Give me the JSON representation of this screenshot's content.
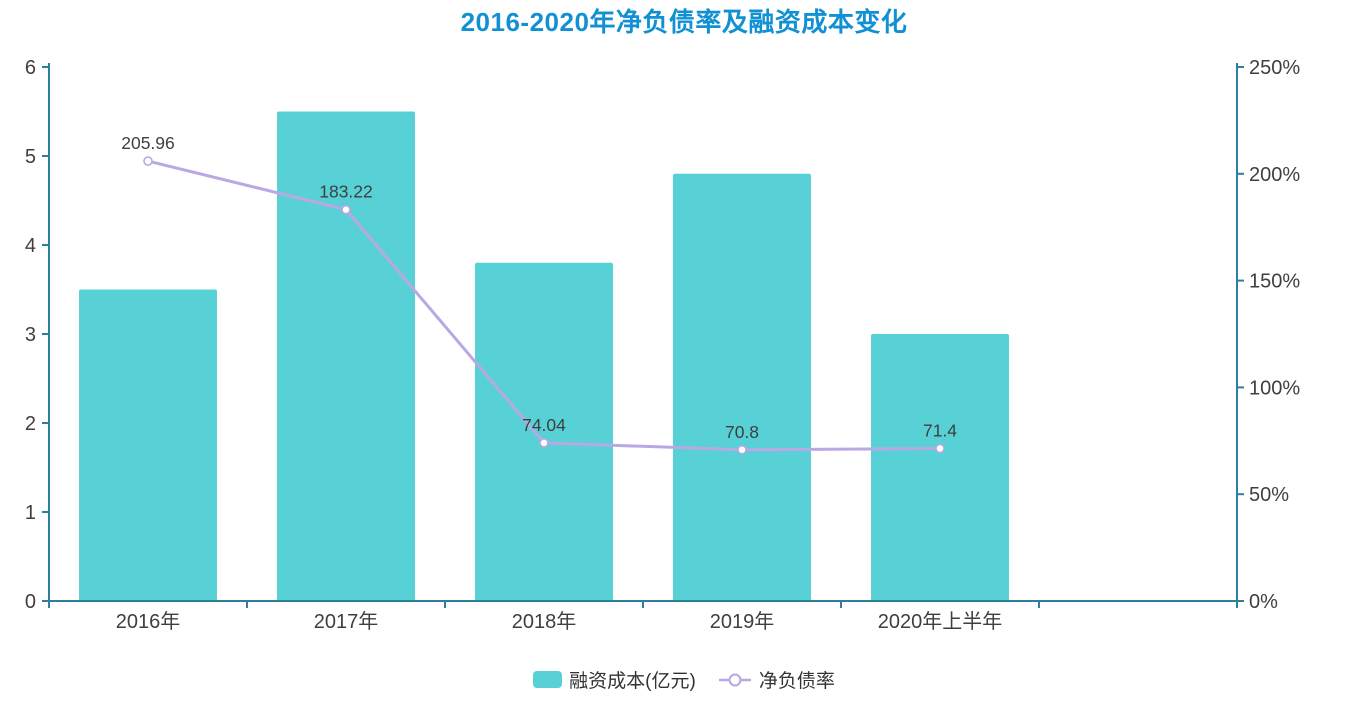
{
  "title": "2016-2020年净负债率及融资成本变化",
  "legend": {
    "bar_label": "融资成本(亿元)",
    "line_label": "净负债率"
  },
  "chart_data": {
    "type": "bar",
    "subtype": "bar+line combo, dual y-axis",
    "categories": [
      "2016年",
      "2017年",
      "2018年",
      "2019年",
      "2020年上半年"
    ],
    "x_slots": 6,
    "series": [
      {
        "name": "融资成本(亿元)",
        "type": "bar",
        "axis": "left",
        "values": [
          3.5,
          5.5,
          3.8,
          4.8,
          3.0
        ]
      },
      {
        "name": "净负债率",
        "type": "line",
        "axis": "right",
        "values": [
          205.96,
          183.22,
          74.04,
          70.8,
          71.4
        ],
        "labels": [
          "205.96",
          "183.22",
          "74.04",
          "70.8",
          "71.4"
        ],
        "unit": "%"
      }
    ],
    "y_left": {
      "min": 0,
      "max": 6,
      "step": 1,
      "tick_labels": [
        "0",
        "1",
        "2",
        "3",
        "4",
        "5",
        "6"
      ]
    },
    "y_right": {
      "min": 0,
      "max": 250,
      "step": 50,
      "tick_labels": [
        "0%",
        "50%",
        "100%",
        "150%",
        "200%",
        "250%"
      ]
    },
    "grid": false,
    "legend_position": "bottom-center",
    "colors": {
      "bar": "#57d1d6",
      "line": "#b9a8e3",
      "marker_fill": "#ffffff",
      "axis": "#2e7f9e",
      "tick_text": "#3f3f3f",
      "label_text": "#3f3f3f",
      "title": "#1191d3",
      "legend_text": "#333333"
    }
  }
}
